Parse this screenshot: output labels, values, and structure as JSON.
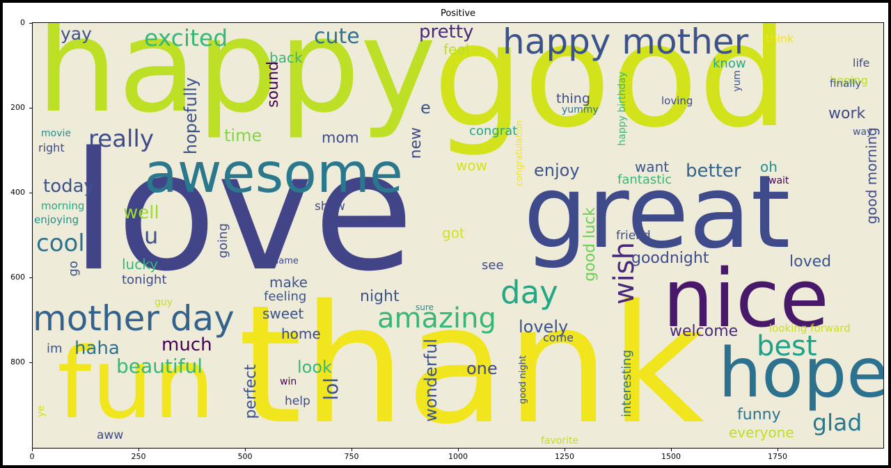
{
  "title": "Positive",
  "axes": {
    "y_ticks": [
      "0",
      "200",
      "400",
      "600",
      "800"
    ],
    "x_ticks": [
      "0",
      "250",
      "500",
      "750",
      "1000",
      "1250",
      "1500",
      "1750"
    ]
  },
  "words": [
    {
      "text": "love",
      "color": "#414487"
    },
    {
      "text": "thank",
      "color": "#f1e51d"
    },
    {
      "text": "good",
      "color": "#d2e21b"
    },
    {
      "text": "happy",
      "color": "#bddf26"
    },
    {
      "text": "great",
      "color": "#3e4a89"
    },
    {
      "text": "nice",
      "color": "#48186a"
    },
    {
      "text": "fun",
      "color": "#f1e51d"
    },
    {
      "text": "hope",
      "color": "#2c728e"
    },
    {
      "text": "awesome",
      "color": "#2a788e"
    },
    {
      "text": "happy mother",
      "color": "#3b528b"
    },
    {
      "text": "mother day",
      "color": "#33638d"
    },
    {
      "text": "amazing",
      "color": "#35b779"
    },
    {
      "text": "day",
      "color": "#22a884"
    },
    {
      "text": "wish",
      "color": "#482878"
    },
    {
      "text": "best",
      "color": "#1fa088"
    },
    {
      "text": "glad",
      "color": "#2a788e"
    },
    {
      "text": "excited",
      "color": "#35b779"
    },
    {
      "text": "cute",
      "color": "#2c728e"
    },
    {
      "text": "pretty",
      "color": "#482878"
    },
    {
      "text": "yay",
      "color": "#3b528b"
    },
    {
      "text": "really",
      "color": "#3e4a89"
    },
    {
      "text": "cool",
      "color": "#2c728e"
    },
    {
      "text": "today",
      "color": "#3b528b"
    },
    {
      "text": "well",
      "color": "#a0da39"
    },
    {
      "text": "u",
      "color": "#3b528b"
    },
    {
      "text": "time",
      "color": "#84d44b"
    },
    {
      "text": "hopefully",
      "color": "#3b528b"
    },
    {
      "text": "back",
      "color": "#35b779"
    },
    {
      "text": "feel",
      "color": "#bddf26"
    },
    {
      "text": "sound",
      "color": "#440154"
    },
    {
      "text": "e",
      "color": "#3b528b"
    },
    {
      "text": "mom",
      "color": "#3e4a89"
    },
    {
      "text": "new",
      "color": "#3e4a89"
    },
    {
      "text": "wow",
      "color": "#d2e21b"
    },
    {
      "text": "enjoy",
      "color": "#3b528b"
    },
    {
      "text": "better",
      "color": "#33638d"
    },
    {
      "text": "want",
      "color": "#3b528b"
    },
    {
      "text": "fantastic",
      "color": "#35b779"
    },
    {
      "text": "oh",
      "color": "#21918c"
    },
    {
      "text": "wait",
      "color": "#440154"
    },
    {
      "text": "work",
      "color": "#3e4a89"
    },
    {
      "text": "good morning",
      "color": "#3e4a89"
    },
    {
      "text": "know",
      "color": "#22a884"
    },
    {
      "text": "life",
      "color": "#3e4a89"
    },
    {
      "text": "hoping",
      "color": "#bddf26"
    },
    {
      "text": "finally",
      "color": "#3b528b"
    },
    {
      "text": "think",
      "color": "#f1e51d"
    },
    {
      "text": "way",
      "color": "#3b528b"
    },
    {
      "text": "yum",
      "color": "#3b528b"
    },
    {
      "text": "loving",
      "color": "#3e4a89"
    },
    {
      "text": "happy birthday",
      "color": "#35b779"
    },
    {
      "text": "thing",
      "color": "#3e4a89"
    },
    {
      "text": "yummy",
      "color": "#2c728e"
    },
    {
      "text": "congrat",
      "color": "#22a884"
    },
    {
      "text": "congratulation",
      "color": "#f1e51d"
    },
    {
      "text": "good luck",
      "color": "#6ece58"
    },
    {
      "text": "friend",
      "color": "#3e4a89"
    },
    {
      "text": "goodnight",
      "color": "#3e4a89"
    },
    {
      "text": "loved",
      "color": "#3b528b"
    },
    {
      "text": "got",
      "color": "#d2e21b"
    },
    {
      "text": "see",
      "color": "#3e4a89"
    },
    {
      "text": "lovely",
      "color": "#3b528b"
    },
    {
      "text": "welcome",
      "color": "#482878"
    },
    {
      "text": "looking forward",
      "color": "#c9e020"
    },
    {
      "text": "come",
      "color": "#3e4a89"
    },
    {
      "text": "good night",
      "color": "#3e4a89"
    },
    {
      "text": "interesting",
      "color": "#2c728e"
    },
    {
      "text": "funny",
      "color": "#2c728e"
    },
    {
      "text": "everyone",
      "color": "#bddf26"
    },
    {
      "text": "favorite",
      "color": "#bddf26"
    },
    {
      "text": "movie",
      "color": "#21918c"
    },
    {
      "text": "right",
      "color": "#3e4a89"
    },
    {
      "text": "morning",
      "color": "#22a884"
    },
    {
      "text": "enjoying",
      "color": "#21918c"
    },
    {
      "text": "show",
      "color": "#3e4a89"
    },
    {
      "text": "going",
      "color": "#3e4a89"
    },
    {
      "text": "go",
      "color": "#3b528b"
    },
    {
      "text": "lucky",
      "color": "#35b779"
    },
    {
      "text": "tonight",
      "color": "#3e4a89"
    },
    {
      "text": "name",
      "color": "#3e4a89"
    },
    {
      "text": "make",
      "color": "#3b528b"
    },
    {
      "text": "feeling",
      "color": "#3b528b"
    },
    {
      "text": "night",
      "color": "#3b528b"
    },
    {
      "text": "guy",
      "color": "#bddf26"
    },
    {
      "text": "sure",
      "color": "#21918c"
    },
    {
      "text": "sweet",
      "color": "#3b528b"
    },
    {
      "text": "home",
      "color": "#3e4a89"
    },
    {
      "text": "much",
      "color": "#440154"
    },
    {
      "text": "haha",
      "color": "#2c728e"
    },
    {
      "text": "im",
      "color": "#3b528b"
    },
    {
      "text": "beautiful",
      "color": "#35b779"
    },
    {
      "text": "look",
      "color": "#35b779"
    },
    {
      "text": "lol",
      "color": "#3b528b"
    },
    {
      "text": "one",
      "color": "#3e4a89"
    },
    {
      "text": "wonderful",
      "color": "#3b528b"
    },
    {
      "text": "perfect",
      "color": "#3b528b"
    },
    {
      "text": "win",
      "color": "#440154"
    },
    {
      "text": "help",
      "color": "#3e4a89"
    },
    {
      "text": "aww",
      "color": "#3e4a89"
    },
    {
      "text": "ye",
      "color": "#d2e21b"
    }
  ]
}
